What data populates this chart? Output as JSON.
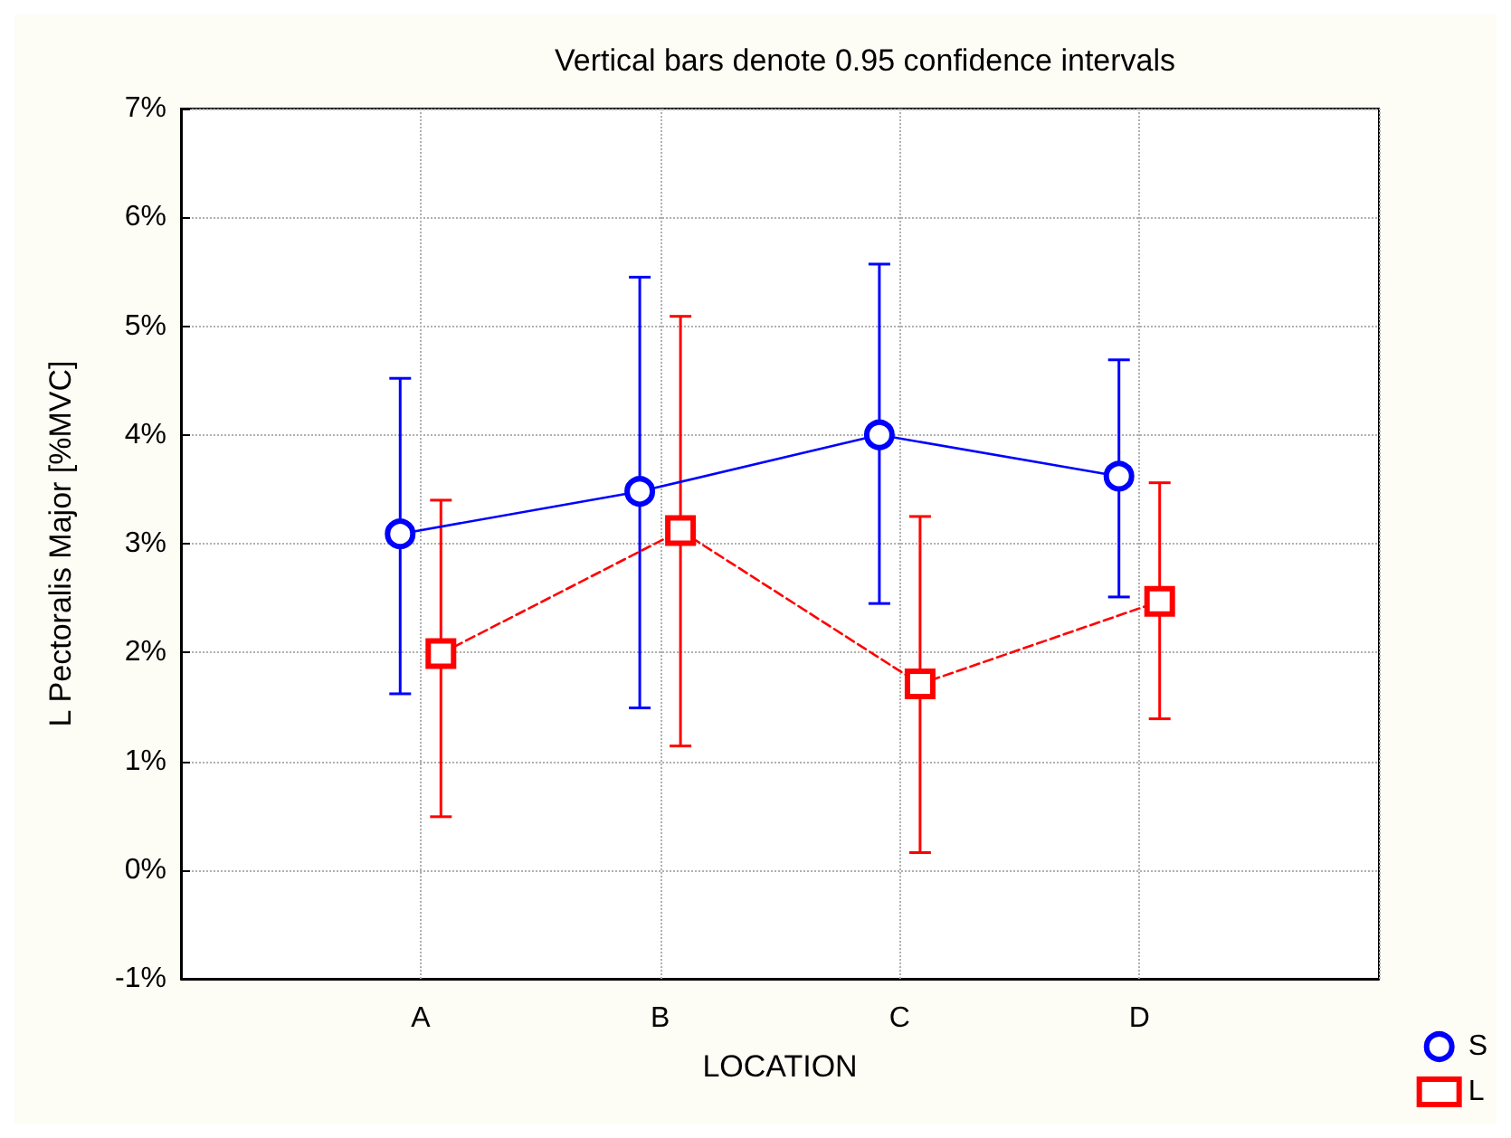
{
  "chart_data": {
    "type": "line",
    "title": "Vertical bars denote 0.95 confidence intervals",
    "xlabel": "LOCATION",
    "ylabel": "L Pectoralis Major [%MVC]",
    "categories": [
      "A",
      "B",
      "C",
      "D"
    ],
    "series": [
      {
        "name": "S",
        "color": "#0000ff",
        "marker": "circle",
        "line_style": "solid",
        "values": [
          3.09,
          3.48,
          4.0,
          3.62
        ],
        "errors": [
          [
            1.62,
            4.52
          ],
          [
            1.49,
            5.45
          ],
          [
            2.45,
            5.57
          ],
          [
            2.51,
            4.69
          ]
        ]
      },
      {
        "name": "L",
        "color": "#ff0000",
        "marker": "square",
        "line_style": "dashed",
        "values": [
          1.99,
          3.12,
          1.71,
          2.47
        ],
        "errors": [
          [
            0.49,
            3.4
          ],
          [
            1.14,
            5.09
          ],
          [
            0.16,
            3.25
          ],
          [
            1.39,
            3.56
          ]
        ]
      }
    ],
    "ylim": [
      -1,
      7
    ],
    "yticks": [
      {
        "value": -1,
        "label": "-1%"
      },
      {
        "value": 0,
        "label": "0%"
      },
      {
        "value": 1,
        "label": "1%"
      },
      {
        "value": 2,
        "label": "2%"
      },
      {
        "value": 3,
        "label": "3%"
      },
      {
        "value": 4,
        "label": "4%"
      },
      {
        "value": 5,
        "label": "5%"
      },
      {
        "value": 6,
        "label": "6%"
      },
      {
        "value": 7,
        "label": "7%"
      }
    ],
    "grid": true,
    "legend": "bottom right"
  }
}
